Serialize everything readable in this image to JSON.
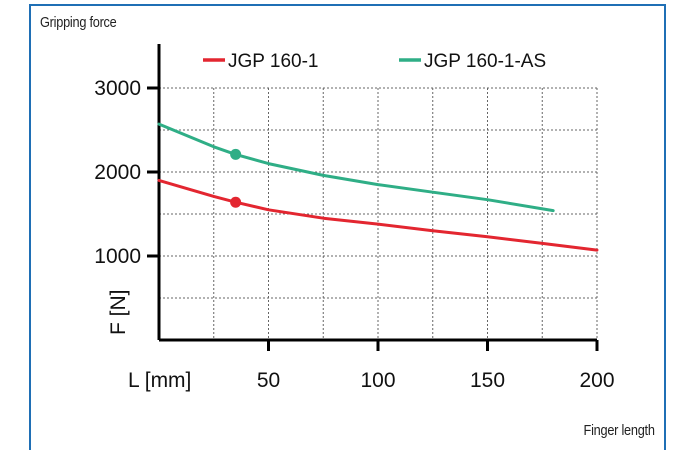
{
  "labels": {
    "top_left": "Gripping force",
    "bottom_right": "Finger length"
  },
  "chart_data": {
    "type": "line",
    "title": "",
    "xlabel": "L [mm]",
    "ylabel": "F [N]",
    "xlim": [
      0,
      200
    ],
    "ylim": [
      0,
      3000
    ],
    "x_ticks": [
      50,
      100,
      150,
      200
    ],
    "y_ticks": [
      1000,
      2000,
      3000
    ],
    "grid": true,
    "legend_position": "top",
    "series": [
      {
        "name": "JGP 160-1",
        "color": "#e32630",
        "x": [
          0,
          25,
          35,
          50,
          75,
          100,
          125,
          150,
          175,
          200
        ],
        "y": [
          1900,
          1710,
          1640,
          1550,
          1450,
          1380,
          1300,
          1230,
          1150,
          1070
        ],
        "marker": {
          "x": 35,
          "y": 1640
        }
      },
      {
        "name": "JGP 160-1-AS",
        "color": "#2fae86",
        "x": [
          0,
          25,
          35,
          50,
          75,
          100,
          125,
          150,
          180
        ],
        "y": [
          2570,
          2300,
          2210,
          2100,
          1960,
          1850,
          1760,
          1670,
          1540
        ],
        "marker": {
          "x": 35,
          "y": 2210
        }
      }
    ]
  }
}
